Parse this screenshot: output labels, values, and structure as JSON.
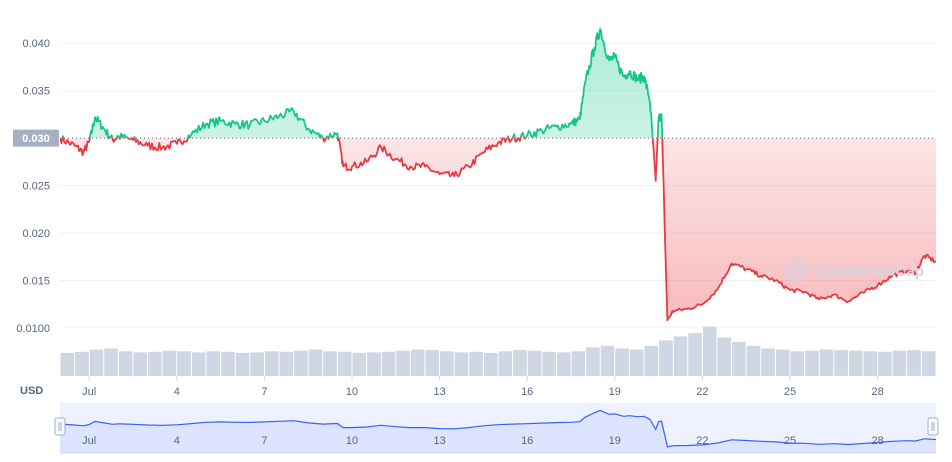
{
  "chart_data": {
    "type": "line",
    "currency_label": "USD",
    "reference_price": 0.03,
    "reference_label": "0.030",
    "y_ticks": [
      {
        "value": 0.04,
        "label": "0.040"
      },
      {
        "value": 0.035,
        "label": "0.035"
      },
      {
        "value": 0.03,
        "label": "0.030"
      },
      {
        "value": 0.025,
        "label": "0.025"
      },
      {
        "value": 0.02,
        "label": "0.020"
      },
      {
        "value": 0.015,
        "label": "0.015"
      },
      {
        "value": 0.01,
        "label": "0.0100"
      }
    ],
    "ylim": [
      0.0082,
      0.0435
    ],
    "xlim": [
      0,
      30
    ],
    "x_ticks": [
      {
        "day": 1,
        "label": "Jul"
      },
      {
        "day": 4,
        "label": "4"
      },
      {
        "day": 7,
        "label": "7"
      },
      {
        "day": 10,
        "label": "10"
      },
      {
        "day": 13,
        "label": "13"
      },
      {
        "day": 16,
        "label": "16"
      },
      {
        "day": 19,
        "label": "19"
      },
      {
        "day": 22,
        "label": "22"
      },
      {
        "day": 25,
        "label": "25"
      },
      {
        "day": 28,
        "label": "28"
      }
    ],
    "series": [
      {
        "x": [
          0,
          0.5,
          0.8,
          1.0,
          1.2,
          1.5,
          1.8,
          2.0,
          2.5,
          3.0,
          3.5,
          4.0,
          4.5,
          5.0,
          5.5,
          6.0,
          6.5,
          7.0,
          7.5,
          8.0,
          8.5,
          9.0,
          9.5,
          9.7,
          10.0,
          10.5,
          11.0,
          11.5,
          12.0,
          12.5,
          13.0,
          13.5,
          14.0,
          14.5,
          15.0,
          15.5,
          16.0,
          16.5,
          17.0,
          17.5,
          17.8,
          18.0,
          18.3,
          18.5,
          18.8,
          19.0,
          19.3,
          19.5,
          19.8,
          20.0,
          20.2,
          20.4,
          20.5,
          20.6,
          20.8,
          21.0,
          21.5,
          22.0,
          22.5,
          23.0,
          23.5,
          24.0,
          24.5,
          25.0,
          25.5,
          26.0,
          26.5,
          27.0,
          27.5,
          28.0,
          28.5,
          29.0,
          29.3,
          29.6,
          30.0
        ],
        "values": [
          0.03,
          0.0292,
          0.0285,
          0.0296,
          0.0322,
          0.031,
          0.0298,
          0.0302,
          0.0298,
          0.0292,
          0.029,
          0.0294,
          0.0304,
          0.0315,
          0.0318,
          0.0315,
          0.0314,
          0.0318,
          0.0323,
          0.0328,
          0.031,
          0.03,
          0.0305,
          0.027,
          0.027,
          0.0275,
          0.029,
          0.0278,
          0.027,
          0.027,
          0.0262,
          0.026,
          0.027,
          0.0285,
          0.0295,
          0.03,
          0.0303,
          0.0308,
          0.0312,
          0.0315,
          0.032,
          0.036,
          0.0395,
          0.0415,
          0.0382,
          0.0385,
          0.0365,
          0.037,
          0.0362,
          0.0365,
          0.034,
          0.0255,
          0.032,
          0.0325,
          0.0108,
          0.0118,
          0.012,
          0.0125,
          0.014,
          0.0168,
          0.0162,
          0.0155,
          0.015,
          0.014,
          0.0138,
          0.013,
          0.0135,
          0.0128,
          0.0137,
          0.0145,
          0.0155,
          0.016,
          0.0158,
          0.0176,
          0.017
        ]
      }
    ]
  },
  "volume_bars": [
    0.42,
    0.44,
    0.48,
    0.5,
    0.45,
    0.43,
    0.44,
    0.46,
    0.45,
    0.43,
    0.45,
    0.44,
    0.42,
    0.43,
    0.45,
    0.44,
    0.46,
    0.48,
    0.45,
    0.44,
    0.42,
    0.43,
    0.44,
    0.46,
    0.48,
    0.47,
    0.45,
    0.43,
    0.44,
    0.42,
    0.45,
    0.47,
    0.46,
    0.44,
    0.43,
    0.45,
    0.52,
    0.55,
    0.5,
    0.48,
    0.55,
    0.65,
    0.72,
    0.78,
    0.9,
    0.7,
    0.62,
    0.55,
    0.5,
    0.48,
    0.45,
    0.46,
    0.48,
    0.47,
    0.46,
    0.45,
    0.44,
    0.46,
    0.47,
    0.45
  ],
  "watermark": "CoinMarketCap",
  "colors": {
    "up": "#16c784",
    "down": "#ea3943",
    "grid": "#eff2f5",
    "reference_badge": "#a6b0c3",
    "volume": "#cfd6e4",
    "navigator_line": "#3861fb",
    "navigator_fill": "#e6ecff"
  }
}
